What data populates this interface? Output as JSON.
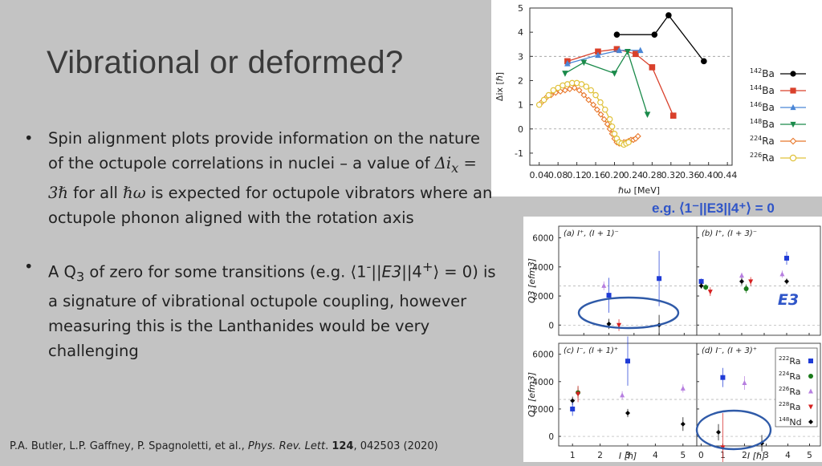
{
  "slide": {
    "title": "Vibrational or deformed?",
    "bullet1": {
      "pre": "Spin alignment plots provide information on the nature of the octupole correlations in nuclei – a value of ",
      "math1": "Δi",
      "math1_sub": "x",
      "math2": " = 3ℏ",
      "mid": " for all ",
      "math3": "ℏω",
      "post": " is expected for octupole vibrators where an octupole phonon aligned with the rotation axis"
    },
    "bullet2": {
      "a": "A Q",
      "a_sub": "3",
      "b": " of zero for some transitions (e.g. ⟨1",
      "sup1": "-",
      "c": "||",
      "d": "E3",
      "e": "||4",
      "sup2": "+",
      "f": "⟩ = 0) is a signature of vibrational octupole coupling, however measuring this is the Lanthanides would be very challenging"
    },
    "citation": {
      "authors": "P.A. Butler, L.P. Gaffney, P. Spagnoletti, et al., ",
      "journal": "Phys. Rev. Lett",
      "dot": ". ",
      "volume": "124",
      "rest": ", 042503 (2020)"
    },
    "eg_label": "e.g. ⟨1⁻||E3||4⁺⟩ = 0",
    "e3_label": "E3"
  },
  "chart_data": [
    {
      "type": "line",
      "xlabel": "ℏω [MeV]",
      "ylabel": "Δix [ℏ]",
      "xlim": [
        0.02,
        0.45
      ],
      "ylim": [
        -1.5,
        5
      ],
      "xticks": [
        "0.04",
        "0.08",
        "0.12",
        "0.16",
        "0.20",
        "0.24",
        "0.28",
        "0.32",
        "0.36",
        "0.40",
        "0.44"
      ],
      "yticks": [
        "-1",
        "0",
        "1",
        "2",
        "3",
        "4",
        "5"
      ],
      "reference_lines": [
        0,
        3
      ],
      "legend_position": "right",
      "series": [
        {
          "name": "142Ba",
          "color": "#000000",
          "marker": "circle",
          "x": [
            0.205,
            0.285,
            0.315,
            0.39
          ],
          "y": [
            3.9,
            3.9,
            4.7,
            2.8
          ]
        },
        {
          "name": "144Ba",
          "color": "#d9402b",
          "marker": "square",
          "x": [
            0.1,
            0.165,
            0.205,
            0.245,
            0.28,
            0.325
          ],
          "y": [
            2.8,
            3.2,
            3.3,
            3.1,
            2.55,
            0.55
          ]
        },
        {
          "name": "146Ba",
          "color": "#4a86d6",
          "marker": "triangle-up",
          "x": [
            0.1,
            0.165,
            0.21,
            0.255
          ],
          "y": [
            2.7,
            3.05,
            3.25,
            3.25
          ]
        },
        {
          "name": "148Ba",
          "color": "#1a8a4a",
          "marker": "triangle-down",
          "x": [
            0.095,
            0.135,
            0.2,
            0.228,
            0.27
          ],
          "y": [
            2.3,
            2.75,
            2.3,
            3.2,
            0.6
          ]
        },
        {
          "name": "224Ra",
          "color": "#e8772a",
          "marker": "diamond",
          "x": [
            0.045,
            0.055,
            0.065,
            0.075,
            0.085,
            0.095,
            0.105,
            0.115,
            0.125,
            0.135,
            0.145,
            0.155,
            0.163,
            0.171,
            0.178,
            0.185,
            0.19,
            0.195,
            0.2,
            0.205,
            0.21,
            0.215,
            0.22,
            0.225,
            0.23,
            0.235,
            0.24,
            0.245,
            0.25
          ],
          "y": [
            1.1,
            1.3,
            1.4,
            1.5,
            1.55,
            1.6,
            1.65,
            1.7,
            1.6,
            1.4,
            1.2,
            1.0,
            0.8,
            0.6,
            0.4,
            0.2,
            0.0,
            -0.2,
            -0.4,
            -0.55,
            -0.6,
            -0.6,
            -0.55,
            -0.55,
            -0.5,
            -0.45,
            -0.45,
            -0.4,
            -0.3
          ]
        },
        {
          "name": "226Ra",
          "color": "#e0c23a",
          "marker": "circle-open",
          "x": [
            0.04,
            0.05,
            0.06,
            0.07,
            0.08,
            0.09,
            0.1,
            0.11,
            0.12,
            0.13,
            0.14,
            0.15,
            0.16,
            0.17,
            0.18,
            0.19,
            0.195,
            0.2,
            0.205,
            0.21,
            0.215,
            0.22,
            0.225,
            0.23
          ],
          "y": [
            1.0,
            1.2,
            1.4,
            1.6,
            1.7,
            1.8,
            1.85,
            1.9,
            1.9,
            1.85,
            1.75,
            1.6,
            1.4,
            1.1,
            0.8,
            0.4,
            0.1,
            -0.2,
            -0.4,
            -0.55,
            -0.6,
            -0.65,
            -0.6,
            -0.55
          ]
        }
      ]
    },
    {
      "type": "scatter",
      "ylabel": "Q3 [efm3]",
      "xlabel": "I [ℏ]",
      "yticks": [
        "0",
        "2000",
        "4000",
        "6000"
      ],
      "legend": [
        "222Ra",
        "224Ra",
        "226Ra",
        "228Ra",
        "148Nd"
      ],
      "legend_colors": [
        "#1f3bd6",
        "#1a7a1a",
        "#b77fe0",
        "#d62020",
        "#000000"
      ],
      "panels": [
        {
          "label": "(a) I⁺, (I + 1)⁻",
          "xlim": [
            0,
            5.5
          ],
          "points": [
            {
              "s": "222Ra",
              "x": 2,
              "y": 2050,
              "err": 1200
            },
            {
              "s": "222Ra",
              "x": 4,
              "y": 3200,
              "err": 1900
            },
            {
              "s": "226Ra",
              "x": 1.8,
              "y": 2700,
              "err": 300
            },
            {
              "s": "148Nd",
              "x": 2,
              "y": 80,
              "err": 350
            },
            {
              "s": "228Ra",
              "x": 2.4,
              "y": 0,
              "err": 400
            },
            {
              "s": "148Nd",
              "x": 4,
              "y": 0,
              "err": 700
            }
          ]
        },
        {
          "label": "(b) I⁺, (I + 3)⁻",
          "xlim": [
            0,
            5.5
          ],
          "points": [
            {
              "s": "222Ra",
              "x": 0.2,
              "y": 3000,
              "err": 200
            },
            {
              "s": "148Nd",
              "x": 0.2,
              "y": 2700,
              "err": 200
            },
            {
              "s": "224Ra",
              "x": 0.4,
              "y": 2600,
              "err": 200
            },
            {
              "s": "228Ra",
              "x": 0.6,
              "y": 2300,
              "err": 300
            },
            {
              "s": "226Ra",
              "x": 2,
              "y": 3400,
              "err": 200
            },
            {
              "s": "148Nd",
              "x": 2,
              "y": 3000,
              "err": 250
            },
            {
              "s": "224Ra",
              "x": 2.2,
              "y": 2500,
              "err": 300
            },
            {
              "s": "228Ra",
              "x": 2.4,
              "y": 3000,
              "err": 300
            },
            {
              "s": "222Ra",
              "x": 4,
              "y": 4600,
              "err": 450
            },
            {
              "s": "226Ra",
              "x": 3.8,
              "y": 3500,
              "err": 250
            },
            {
              "s": "148Nd",
              "x": 4,
              "y": 3000,
              "err": 200
            }
          ]
        },
        {
          "label": "(c) I⁻, (I + 1)⁺",
          "xlim": [
            0.5,
            5.5
          ],
          "points": [
            {
              "s": "148Nd",
              "x": 1,
              "y": 2600,
              "err": 300
            },
            {
              "s": "222Ra",
              "x": 1,
              "y": 2000,
              "err": 500
            },
            {
              "s": "224Ra",
              "x": 1.2,
              "y": 3200,
              "err": 400
            },
            {
              "s": "228Ra",
              "x": 1.2,
              "y": 3100,
              "err": 600
            },
            {
              "s": "226Ra",
              "x": 2.8,
              "y": 3000,
              "err": 300
            },
            {
              "s": "222Ra",
              "x": 3,
              "y": 5500,
              "err": 1800
            },
            {
              "s": "148Nd",
              "x": 3,
              "y": 1700,
              "err": 300
            },
            {
              "s": "226Ra",
              "x": 5,
              "y": 3500,
              "err": 300
            },
            {
              "s": "148Nd",
              "x": 5,
              "y": 900,
              "err": 500
            }
          ]
        },
        {
          "label": "(d) I⁻, (I + 3)⁺",
          "xlim": [
            -0.2,
            5.5
          ],
          "points": [
            {
              "s": "148Nd",
              "x": 0.8,
              "y": 300,
              "err": 600
            },
            {
              "s": "228Ra",
              "x": 1,
              "y": -800,
              "err": 2500
            },
            {
              "s": "222Ra",
              "x": 1,
              "y": 4300,
              "err": 700
            },
            {
              "s": "226Ra",
              "x": 2,
              "y": 3900,
              "err": 500
            },
            {
              "s": "148Nd",
              "x": 2.8,
              "y": -500,
              "err": 600
            }
          ]
        }
      ],
      "xticks": [
        "1",
        "2",
        "3",
        "4",
        "5"
      ],
      "xticks_d": [
        "0",
        "1",
        "2",
        "3",
        "4",
        "5"
      ]
    }
  ]
}
